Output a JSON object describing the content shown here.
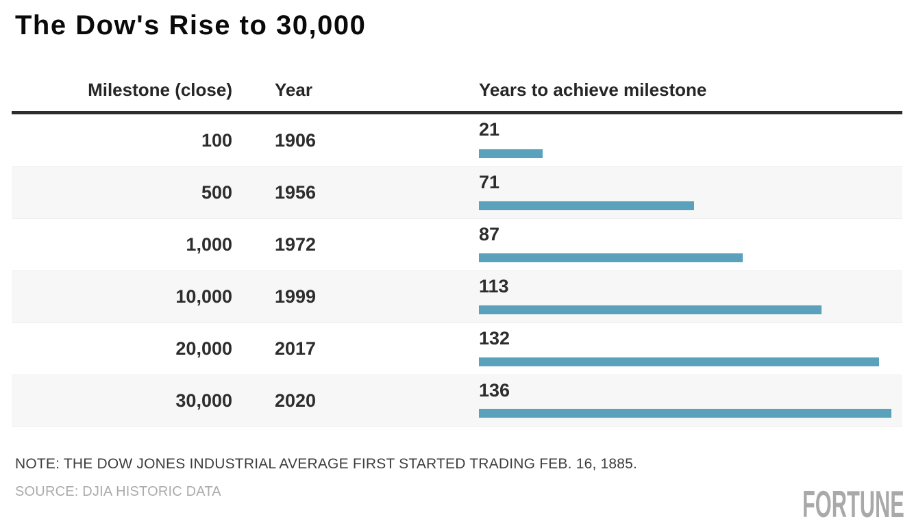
{
  "title": "The Dow's Rise to 30,000",
  "chart_data": {
    "type": "bar",
    "orientation": "horizontal",
    "title": "The Dow's Rise to 30,000",
    "columns": [
      "Milestone (close)",
      "Year",
      "Years to achieve milestone"
    ],
    "rows": [
      {
        "milestone": "100",
        "year": "1906",
        "years": 21
      },
      {
        "milestone": "500",
        "year": "1956",
        "years": 71
      },
      {
        "milestone": "1,000",
        "year": "1972",
        "years": 87
      },
      {
        "milestone": "10,000",
        "year": "1999",
        "years": 113
      },
      {
        "milestone": "20,000",
        "year": "2017",
        "years": 132
      },
      {
        "milestone": "30,000",
        "year": "2020",
        "years": 136
      }
    ],
    "xlim": [
      0,
      136
    ],
    "bar_color": "#5aa2bb",
    "stripe_color": "#f7f7f7",
    "legend": "none",
    "grid": "off"
  },
  "footer": {
    "note": "NOTE: THE DOW JONES INDUSTRIAL AVERAGE FIRST STARTED TRADING FEB. 16, 1885.",
    "source": "SOURCE: DJIA HISTORIC DATA",
    "brand": "FORTUNE"
  }
}
